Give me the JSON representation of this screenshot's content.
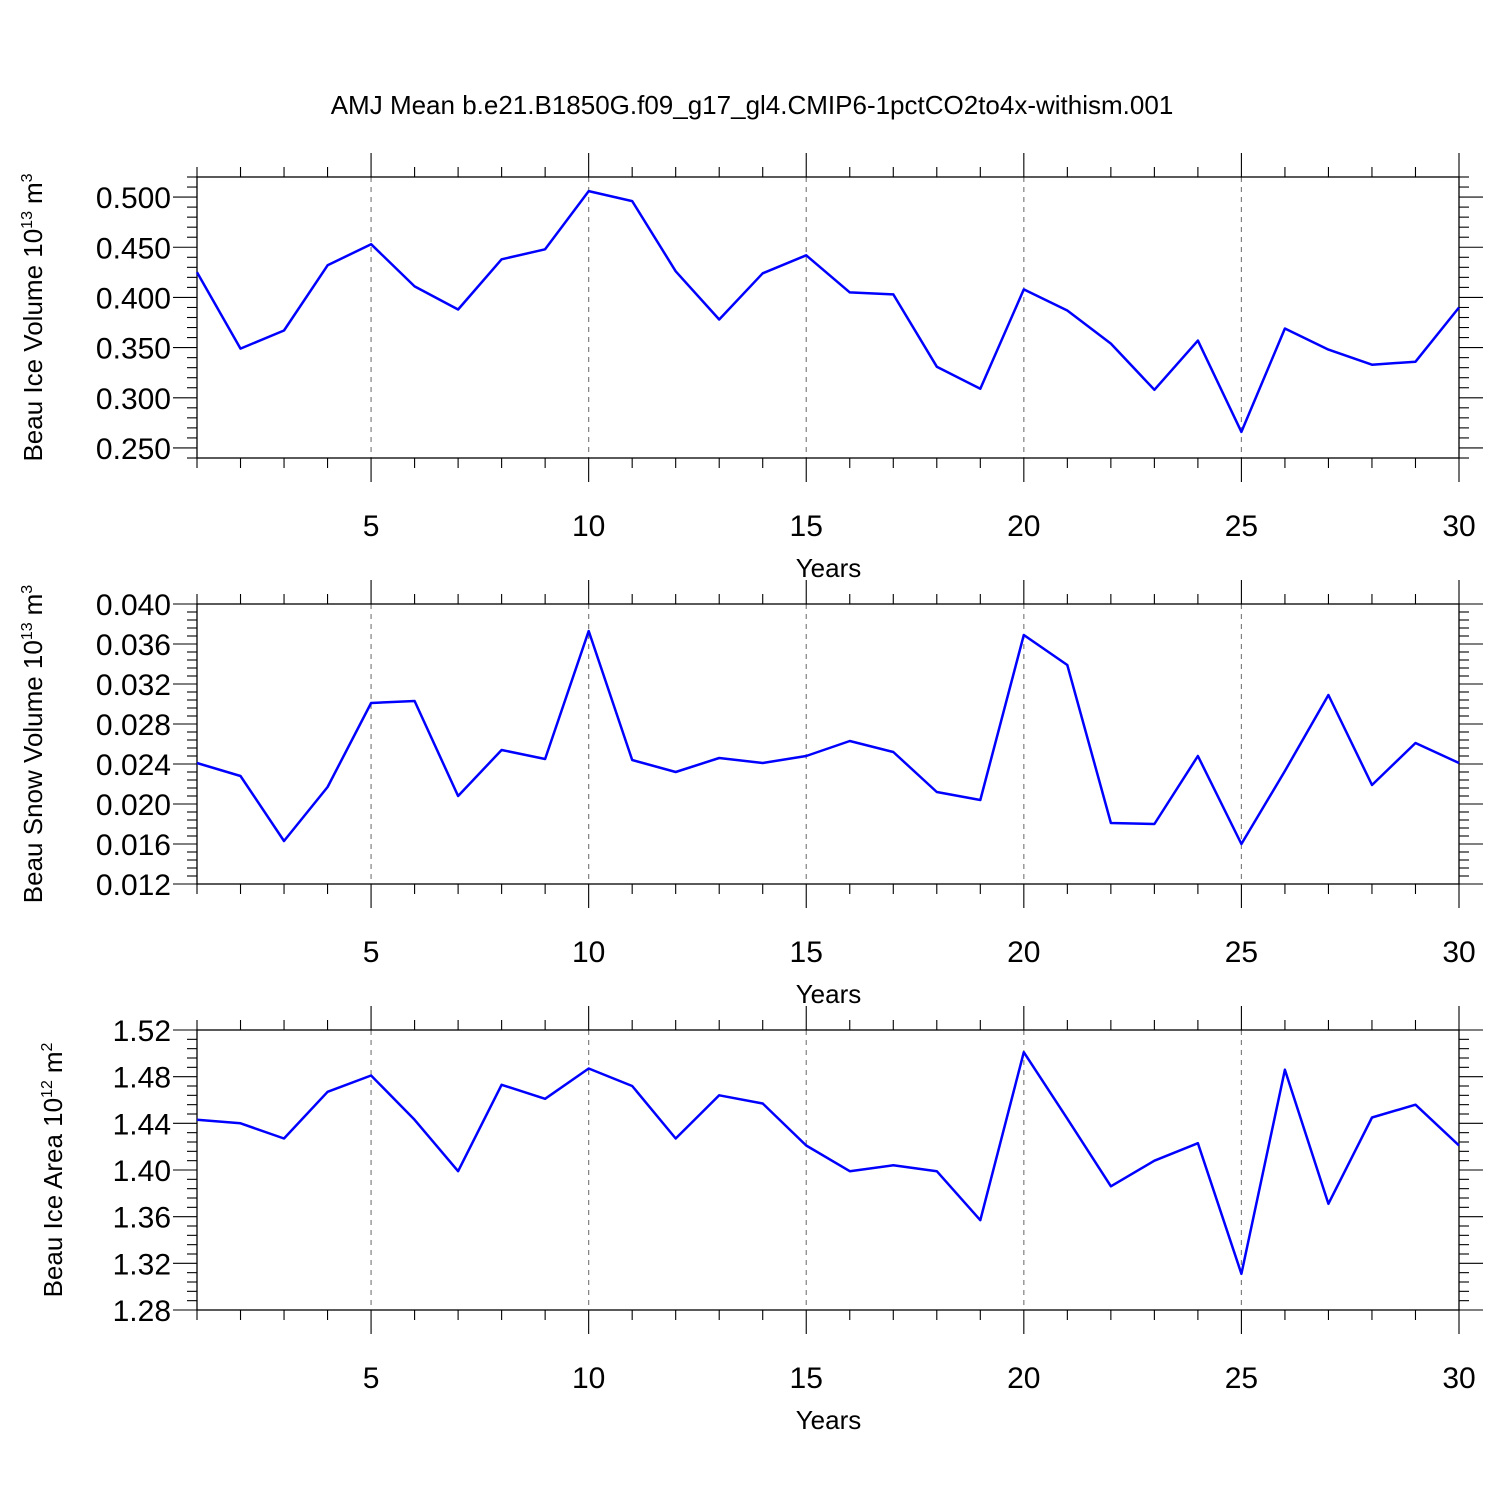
{
  "title": "AMJ Mean b.e21.B1850G.f09_g17_gl4.CMIP6-1pctCO2to4x-withism.001",
  "colors": {
    "series": "#0000ff",
    "grid": "#808080"
  },
  "chart_data": [
    {
      "type": "line",
      "ylabel": "Beau Ice Volume 10",
      "ylabel_exp": "13",
      "ylabel_unit": "m",
      "ylabel_unit_exp": "3",
      "xlabel": "Years",
      "xlim": [
        1,
        30
      ],
      "ylim": [
        0.24,
        0.52
      ],
      "yticks": [
        0.25,
        0.3,
        0.35,
        0.4,
        0.45,
        0.5
      ],
      "ytick_labels": [
        "0.250",
        "0.300",
        "0.350",
        "0.400",
        "0.450",
        "0.500"
      ],
      "xticks": [
        5,
        10,
        15,
        20,
        25,
        30
      ],
      "xtick_labels": [
        "5",
        "10",
        "15",
        "20",
        "25",
        "30"
      ],
      "grid": "vertical dashed at major x ticks",
      "x": [
        1,
        2,
        3,
        4,
        5,
        6,
        7,
        8,
        9,
        10,
        11,
        12,
        13,
        14,
        15,
        16,
        17,
        18,
        19,
        20,
        21,
        22,
        23,
        24,
        25,
        26,
        27,
        28,
        29,
        30
      ],
      "values": [
        0.425,
        0.349,
        0.367,
        0.432,
        0.453,
        0.411,
        0.388,
        0.438,
        0.448,
        0.506,
        0.496,
        0.426,
        0.378,
        0.424,
        0.442,
        0.405,
        0.403,
        0.331,
        0.309,
        0.408,
        0.387,
        0.354,
        0.308,
        0.357,
        0.266,
        0.369,
        0.348,
        0.333,
        0.336,
        0.39
      ]
    },
    {
      "type": "line",
      "ylabel": "Beau Snow Volume 10",
      "ylabel_exp": "13",
      "ylabel_unit": "m",
      "ylabel_unit_exp": "3",
      "xlabel": "Years",
      "xlim": [
        1,
        30
      ],
      "ylim": [
        0.012,
        0.04
      ],
      "yticks": [
        0.012,
        0.016,
        0.02,
        0.024,
        0.028,
        0.032,
        0.036,
        0.04
      ],
      "ytick_labels": [
        "0.012",
        "0.016",
        "0.020",
        "0.024",
        "0.028",
        "0.032",
        "0.036",
        "0.040"
      ],
      "xticks": [
        5,
        10,
        15,
        20,
        25,
        30
      ],
      "xtick_labels": [
        "5",
        "10",
        "15",
        "20",
        "25",
        "30"
      ],
      "grid": "vertical dashed at major x ticks",
      "x": [
        1,
        2,
        3,
        4,
        5,
        6,
        7,
        8,
        9,
        10,
        11,
        12,
        13,
        14,
        15,
        16,
        17,
        18,
        19,
        20,
        21,
        22,
        23,
        24,
        25,
        26,
        27,
        28,
        29,
        30
      ],
      "values": [
        0.0241,
        0.0228,
        0.0163,
        0.0217,
        0.0301,
        0.0303,
        0.0208,
        0.0254,
        0.0245,
        0.0373,
        0.0244,
        0.0232,
        0.0246,
        0.0241,
        0.0248,
        0.0263,
        0.0252,
        0.0212,
        0.0204,
        0.0369,
        0.0339,
        0.0181,
        0.018,
        0.0248,
        0.016,
        0.0233,
        0.0309,
        0.0219,
        0.0261,
        0.0241
      ]
    },
    {
      "type": "line",
      "ylabel": "Beau Ice Area 10",
      "ylabel_exp": "12",
      "ylabel_unit": "m",
      "ylabel_unit_exp": "2",
      "xlabel": "Years",
      "xlim": [
        1,
        30
      ],
      "ylim": [
        1.28,
        1.52
      ],
      "yticks": [
        1.28,
        1.32,
        1.36,
        1.4,
        1.44,
        1.48,
        1.52
      ],
      "ytick_labels": [
        "1.28",
        "1.32",
        "1.36",
        "1.40",
        "1.44",
        "1.48",
        "1.52"
      ],
      "xticks": [
        5,
        10,
        15,
        20,
        25,
        30
      ],
      "xtick_labels": [
        "5",
        "10",
        "15",
        "20",
        "25",
        "30"
      ],
      "grid": "vertical dashed at major x ticks",
      "x": [
        1,
        2,
        3,
        4,
        5,
        6,
        7,
        8,
        9,
        10,
        11,
        12,
        13,
        14,
        15,
        16,
        17,
        18,
        19,
        20,
        21,
        22,
        23,
        24,
        25,
        26,
        27,
        28,
        29,
        30
      ],
      "values": [
        1.443,
        1.44,
        1.427,
        1.467,
        1.481,
        1.443,
        1.399,
        1.473,
        1.461,
        1.487,
        1.472,
        1.427,
        1.464,
        1.457,
        1.421,
        1.399,
        1.404,
        1.399,
        1.357,
        1.501,
        1.444,
        1.386,
        1.408,
        1.423,
        1.311,
        1.486,
        1.371,
        1.445,
        1.456,
        1.421
      ]
    }
  ]
}
